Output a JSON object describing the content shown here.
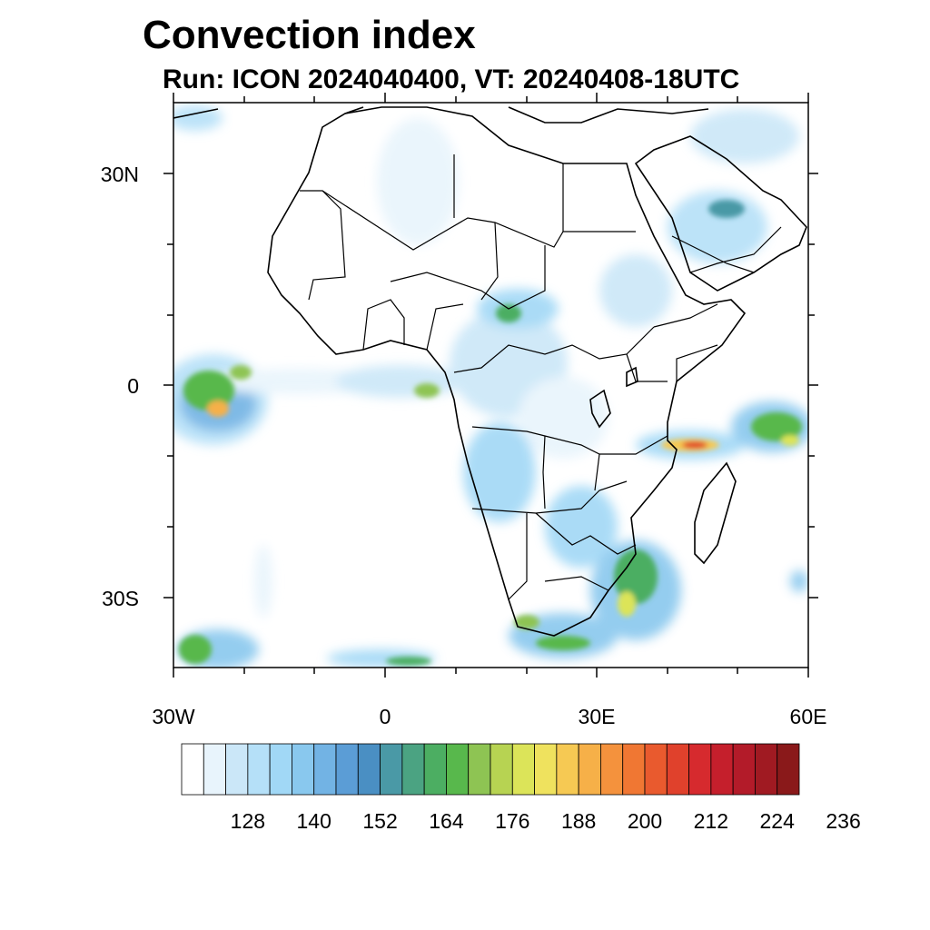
{
  "title": "Convection index",
  "subtitle": "Run: ICON 2024040400,  VT: 20240408-18UTC",
  "map": {
    "lon_range": [
      -30,
      60
    ],
    "lat_range": [
      -40,
      40
    ],
    "lon_labels": [
      {
        "lon": -30,
        "text": "30W"
      },
      {
        "lon": 0,
        "text": "0"
      },
      {
        "lon": 30,
        "text": "30E"
      },
      {
        "lon": 60,
        "text": "60E"
      }
    ],
    "lat_labels": [
      {
        "lat": 30,
        "text": "30N"
      },
      {
        "lat": 0,
        "text": "0"
      },
      {
        "lat": -30,
        "text": "30S"
      }
    ],
    "minor_lon_ticks": [
      -20,
      -10,
      10,
      20,
      40,
      50
    ],
    "minor_lat_ticks": [
      20,
      10,
      -10,
      -20
    ]
  },
  "colorbar": {
    "colors": [
      "#ffffff",
      "#e8f4fc",
      "#cbe7f8",
      "#b5e0f8",
      "#a1d8f6",
      "#89c8ee",
      "#72b3e4",
      "#5b9dd6",
      "#4a8fc3",
      "#4a99a6",
      "#4ba382",
      "#4cae62",
      "#58b84c",
      "#8ec453",
      "#b7d352",
      "#dce459",
      "#efe25e",
      "#f6c953",
      "#f6b048",
      "#f4923d",
      "#f07733",
      "#e95a2e",
      "#e0412c",
      "#d62a2e",
      "#c51f2c",
      "#b31b29",
      "#a01a22",
      "#8a191a"
    ],
    "labels": [
      "128",
      "140",
      "152",
      "164",
      "176",
      "188",
      "200",
      "212",
      "224",
      "236"
    ]
  }
}
